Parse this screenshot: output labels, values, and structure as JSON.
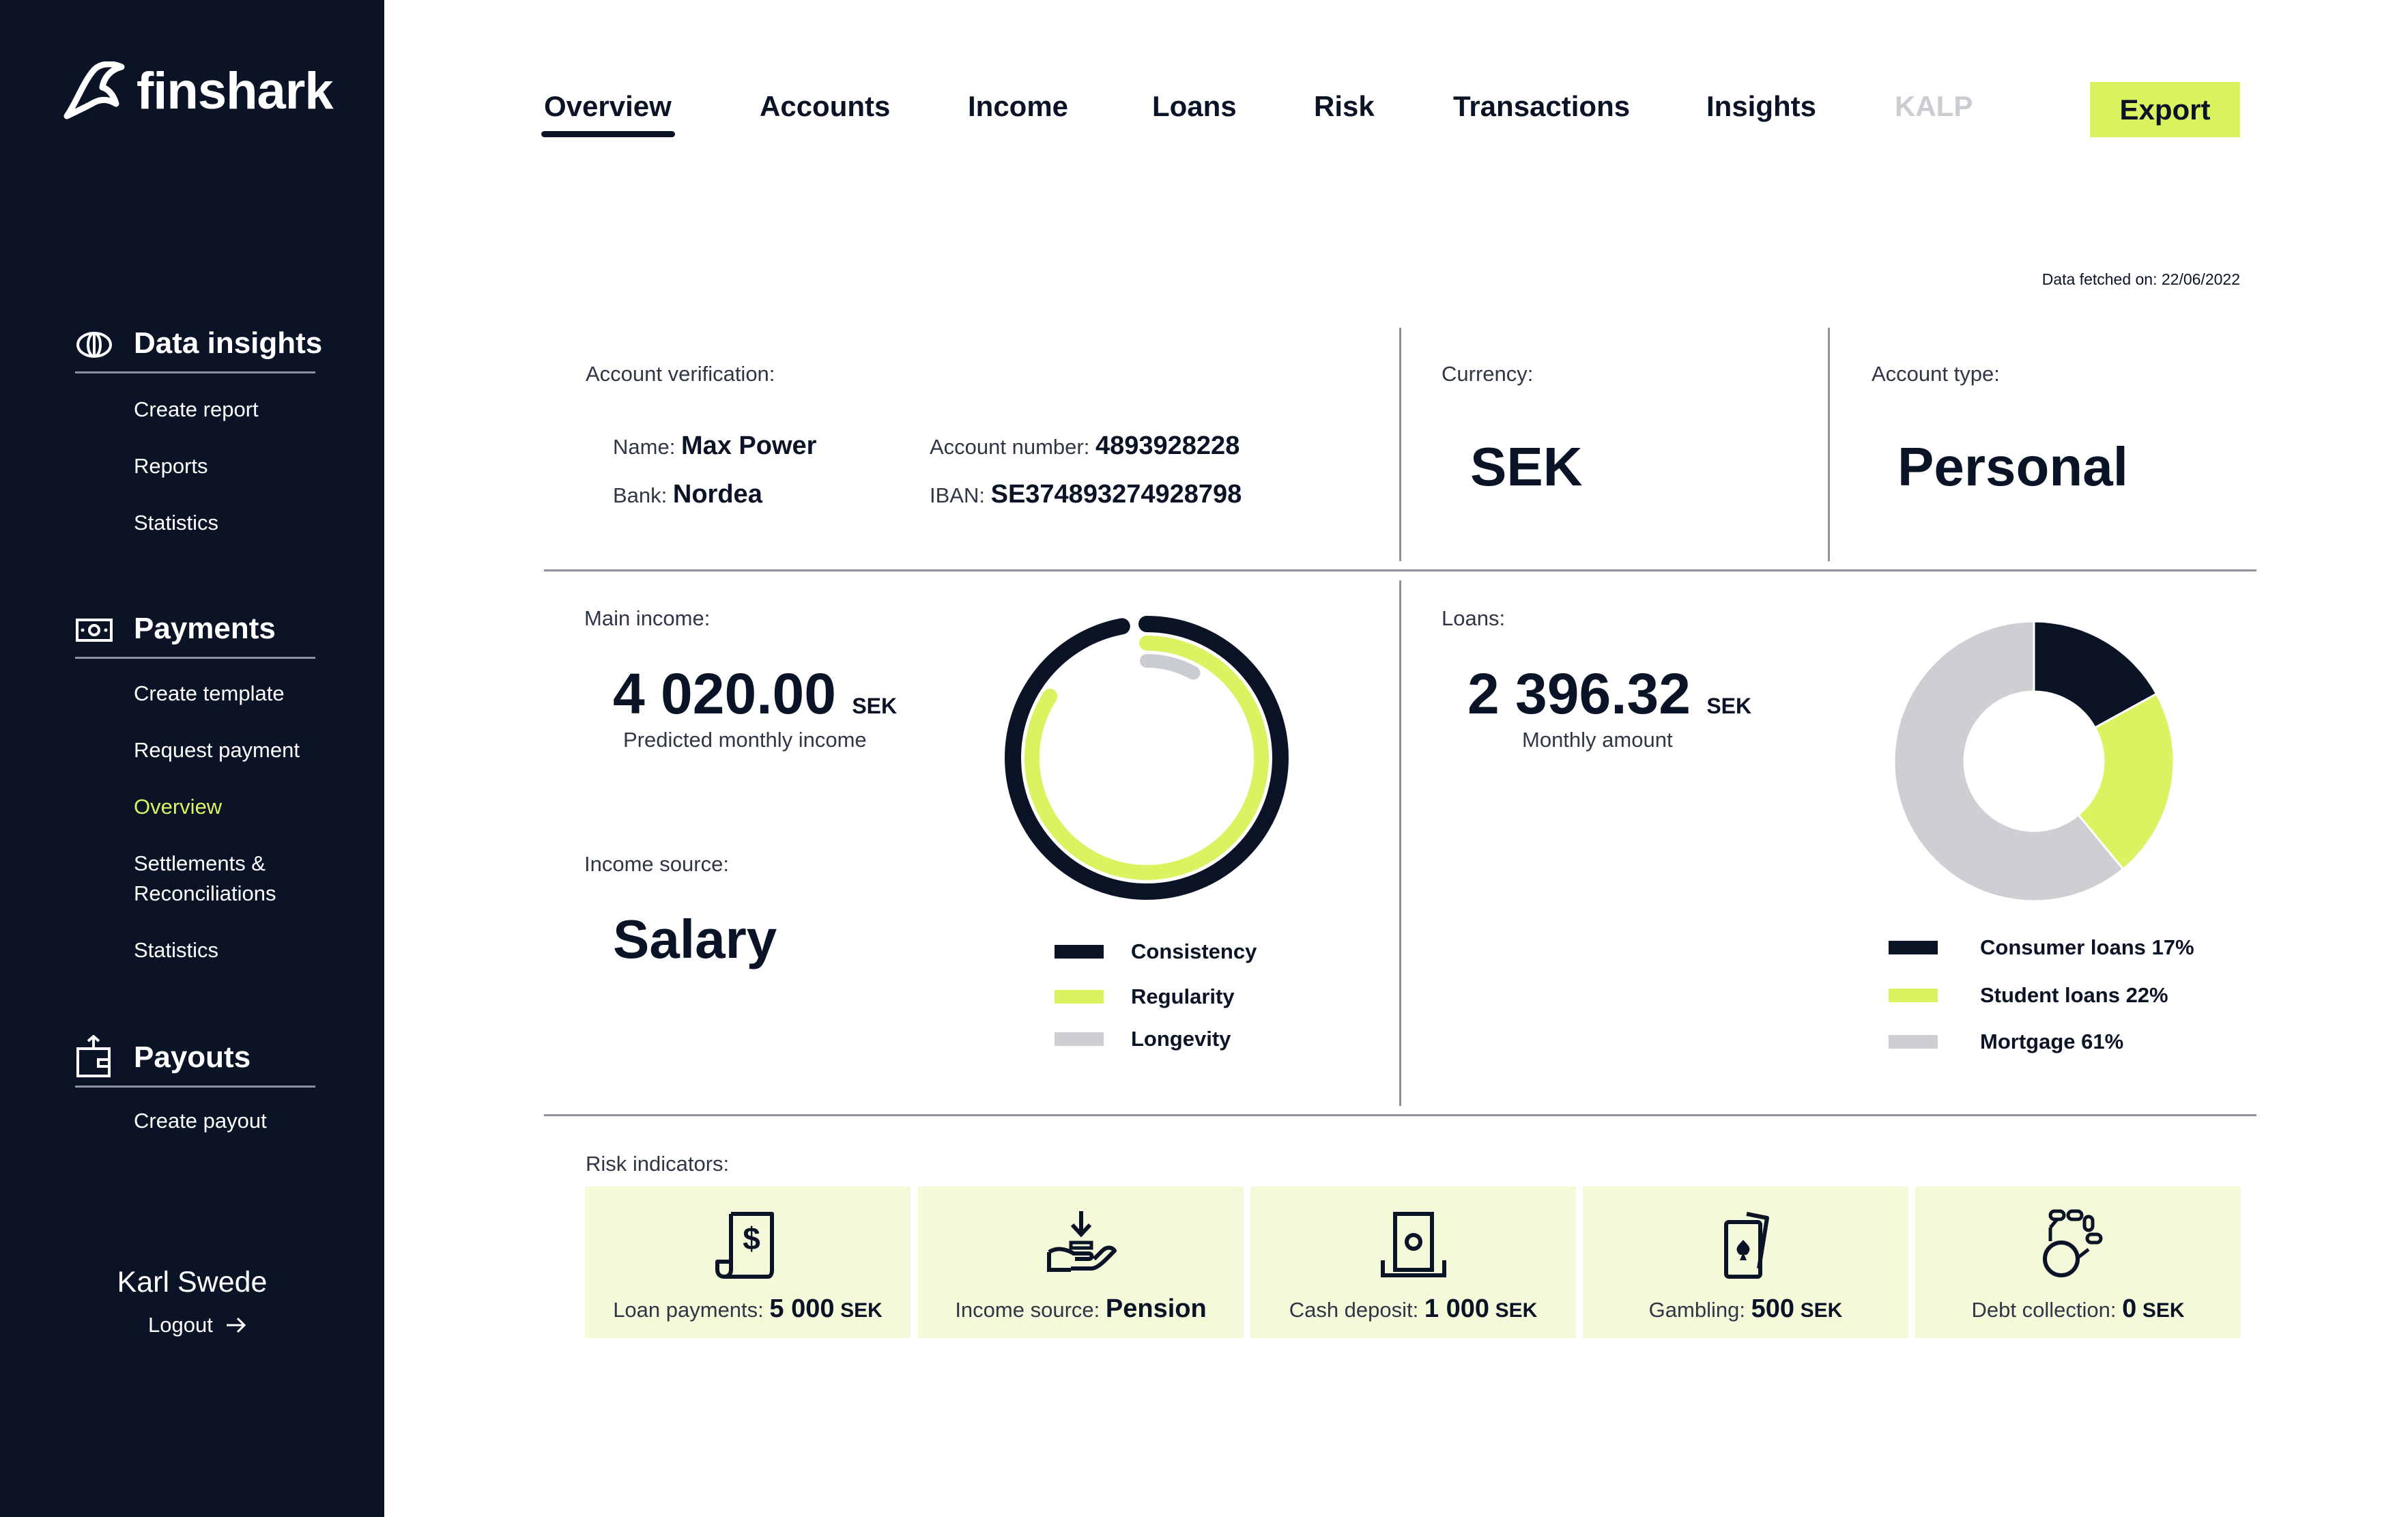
{
  "brand": {
    "name": "finshark",
    "icon": "shark-fin-logo-icon"
  },
  "sidebar": {
    "sections": [
      {
        "title": "Data insights",
        "icon": "eye-icon",
        "items": [
          "Create report",
          "Reports",
          "Statistics"
        ]
      },
      {
        "title": "Payments",
        "icon": "banknote-icon",
        "items": [
          "Create template",
          "Request payment",
          "Overview",
          "Settlements &",
          "Reconciliations",
          "Statistics"
        ]
      },
      {
        "title": "Payouts",
        "icon": "wallet-icon",
        "items": [
          "Create payout"
        ]
      }
    ],
    "active_item": "Overview",
    "user": {
      "name": "Karl Swede",
      "logout": "Logout"
    }
  },
  "nav": {
    "tabs": [
      "Overview",
      "Accounts",
      "Income",
      "Loans",
      "Risk",
      "Transactions",
      "Insights",
      "KALP"
    ],
    "active": "Overview",
    "disabled": "KALP",
    "export_label": "Export"
  },
  "fetched": "Data fetched on: 22/06/2022",
  "account": {
    "label": "Account verification:",
    "name_label": "Name:",
    "name": "Max Power",
    "bank_label": "Bank:",
    "bank": "Nordea",
    "number_label": "Account number:",
    "number": "4893928228",
    "iban_label": "IBAN:",
    "iban": "SE374893274928798"
  },
  "currency": {
    "label": "Currency:",
    "value": "SEK"
  },
  "account_type": {
    "label": "Account type:",
    "value": "Personal"
  },
  "income": {
    "label": "Main income:",
    "amount": "4 020.00",
    "unit": "SEK",
    "sub": "Predicted monthly income",
    "source_label": "Income source:",
    "source": "Salary",
    "legend": [
      "Consistency",
      "Regularity",
      "Longevity"
    ]
  },
  "loans": {
    "label": "Loans:",
    "amount": "2 396.32",
    "unit": "SEK",
    "sub": "Monthly amount",
    "legend": [
      "Consumer loans 17%",
      "Student loans 22%",
      "Mortgage 61%"
    ]
  },
  "chart_data": [
    {
      "type": "radial-progress",
      "series": [
        {
          "name": "Consistency",
          "value": 0.97,
          "color": "#0b1326"
        },
        {
          "name": "Regularity",
          "value": 0.84,
          "color": "#dbf261"
        },
        {
          "name": "Longevity",
          "value": 0.08,
          "color": "#c9ccd1"
        }
      ]
    },
    {
      "type": "pie",
      "categories": [
        "Consumer loans",
        "Student loans",
        "Mortgage"
      ],
      "values": [
        17,
        22,
        61
      ],
      "colors": [
        "#0b1326",
        "#dbf261",
        "#cdcfd3"
      ]
    }
  ],
  "risk": {
    "label": "Risk indicators:",
    "cards": [
      {
        "label": "Loan payments:",
        "value": "5 000",
        "unit": "SEK",
        "icon": "invoice-dollar-icon"
      },
      {
        "label": "Income source:",
        "value": "Pension",
        "unit": "",
        "icon": "hand-receive-money-icon"
      },
      {
        "label": "Cash deposit:",
        "value": "1 000",
        "unit": "SEK",
        "icon": "cash-deposit-icon"
      },
      {
        "label": "Gambling:",
        "value": "500",
        "unit": "SEK",
        "icon": "playing-cards-icon"
      },
      {
        "label": "Debt collection:",
        "value": "0",
        "unit": "SEK",
        "icon": "ball-and-chain-icon"
      }
    ]
  },
  "colors": {
    "navy": "#0b1326",
    "lime": "#dbf261",
    "grey": "#cdcfd3",
    "card_bg": "#f3f9d9"
  }
}
